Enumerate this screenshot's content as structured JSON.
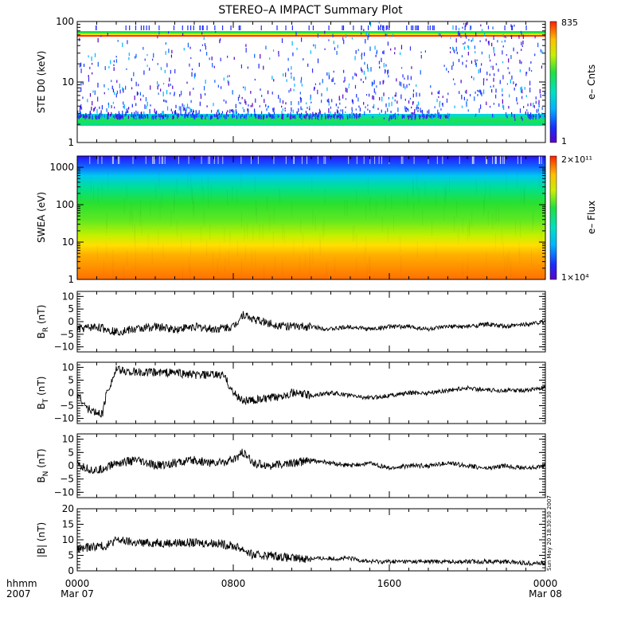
{
  "title": "STEREO–A IMPACT Summary Plot",
  "timestamp": "Sun May 20 18:30:30 2007",
  "footer": {
    "left_line1": "hhmm",
    "left_line2": "2007",
    "ticks": [
      {
        "time": "0000",
        "date": "Mar 07"
      },
      {
        "time": "0800",
        "date": ""
      },
      {
        "time": "1600",
        "date": ""
      },
      {
        "time": "0000",
        "date": "Mar 08"
      }
    ]
  },
  "chart_data": [
    {
      "type": "heatmap",
      "ylabel": "STE D0 (keV)",
      "yscale": "log",
      "ylim": [
        1,
        100
      ],
      "yticks": [
        "1",
        "10",
        "100"
      ],
      "xlim_hours": [
        0,
        24
      ],
      "colorbar": {
        "label": "e– Cnts",
        "max": "835",
        "min": "1"
      },
      "features": [
        {
          "desc": "persistent high-count bands",
          "energy_keV": [
            58,
            68
          ]
        },
        {
          "desc": "low-energy background band",
          "energy_keV": [
            2,
            3
          ]
        },
        {
          "desc": "enhanced bursts",
          "hours": [
            14.5,
            16
          ]
        },
        {
          "desc": "enhanced bursts",
          "hours": [
            19,
            23
          ]
        }
      ]
    },
    {
      "type": "heatmap",
      "ylabel": "SWEA (eV)",
      "yscale": "log",
      "ylim": [
        1,
        2000
      ],
      "yticks": [
        "1",
        "10",
        "100",
        "1000"
      ],
      "xlim_hours": [
        0,
        24
      ],
      "colorbar": {
        "label": "e– Flux",
        "max": "2×10¹¹",
        "min": "1×10⁴"
      }
    },
    {
      "type": "line",
      "ylabel": "B",
      "ylabel_sub": "R",
      "ylabel_unit": "(nT)",
      "ylim": [
        -12,
        12
      ],
      "yticks": [
        "−10",
        "−5",
        "0",
        "5",
        "10"
      ],
      "ytick_values": [
        -10,
        -5,
        0,
        5,
        10
      ],
      "x": [
        0,
        1,
        2,
        3,
        4,
        5,
        6,
        7,
        8,
        8.5,
        9,
        10,
        11,
        12,
        13,
        14,
        15,
        16,
        17,
        18,
        19,
        20,
        21,
        22,
        23,
        24
      ],
      "y": [
        -3,
        -2,
        -4,
        -3,
        -2,
        -3,
        -2,
        -3,
        -2,
        3,
        1,
        -1,
        -2,
        -2,
        -3,
        -2,
        -3,
        -2,
        -2,
        -3,
        -2,
        -2,
        -1,
        -2,
        -1,
        0
      ]
    },
    {
      "type": "line",
      "ylabel": "B",
      "ylabel_sub": "T",
      "ylabel_unit": "(nT)",
      "ylim": [
        -12,
        12
      ],
      "yticks": [
        "−10",
        "−5",
        "0",
        "5",
        "10"
      ],
      "ytick_values": [
        -10,
        -5,
        0,
        5,
        10
      ],
      "x": [
        0,
        0.5,
        1,
        1.3,
        1.5,
        2,
        3,
        4,
        5,
        6,
        7,
        7.5,
        8,
        8.5,
        9,
        10,
        11,
        12,
        13,
        14,
        15,
        16,
        17,
        18,
        19,
        20,
        21,
        22,
        23,
        24
      ],
      "y": [
        0,
        -6,
        -8,
        -8,
        0,
        9,
        8,
        8,
        8,
        7,
        7,
        7,
        0,
        -3,
        -3,
        -2,
        0,
        -1,
        0,
        -1,
        -2,
        -1,
        0,
        0,
        1,
        2,
        1,
        1,
        1,
        2
      ]
    },
    {
      "type": "line",
      "ylabel": "B",
      "ylabel_sub": "N",
      "ylabel_unit": "(nT)",
      "ylim": [
        -12,
        12
      ],
      "yticks": [
        "−10",
        "−5",
        "0",
        "5",
        "10"
      ],
      "ytick_values": [
        -10,
        -5,
        0,
        5,
        10
      ],
      "x": [
        0,
        1,
        2,
        3,
        4,
        5,
        6,
        7,
        8,
        8.5,
        9,
        10,
        11,
        12,
        13,
        14,
        15,
        16,
        17,
        18,
        19,
        20,
        21,
        22,
        23,
        24
      ],
      "y": [
        0,
        -2,
        1,
        2,
        0,
        1,
        2,
        1,
        2,
        5,
        1,
        0,
        1,
        2,
        1,
        0,
        1,
        -1,
        0,
        0,
        1,
        0,
        -1,
        0,
        -1,
        0
      ]
    },
    {
      "type": "line",
      "ylabel": "|B| (nT)",
      "ylim": [
        0,
        20
      ],
      "yticks": [
        "0",
        "5",
        "10",
        "15",
        "20"
      ],
      "ytick_values": [
        0,
        5,
        10,
        15,
        20
      ],
      "x": [
        0,
        1,
        1.5,
        2,
        3,
        4,
        5,
        6,
        7,
        8,
        8.5,
        9,
        10,
        11,
        12,
        13,
        14,
        15,
        16,
        17,
        18,
        19,
        20,
        21,
        22,
        23,
        24
      ],
      "y": [
        7,
        8,
        8,
        10,
        9,
        9,
        9,
        9,
        9,
        8,
        7,
        5,
        5,
        4,
        4,
        4,
        4,
        3,
        3,
        3,
        3,
        3,
        3,
        3,
        3,
        2.5,
        2.5
      ]
    }
  ]
}
